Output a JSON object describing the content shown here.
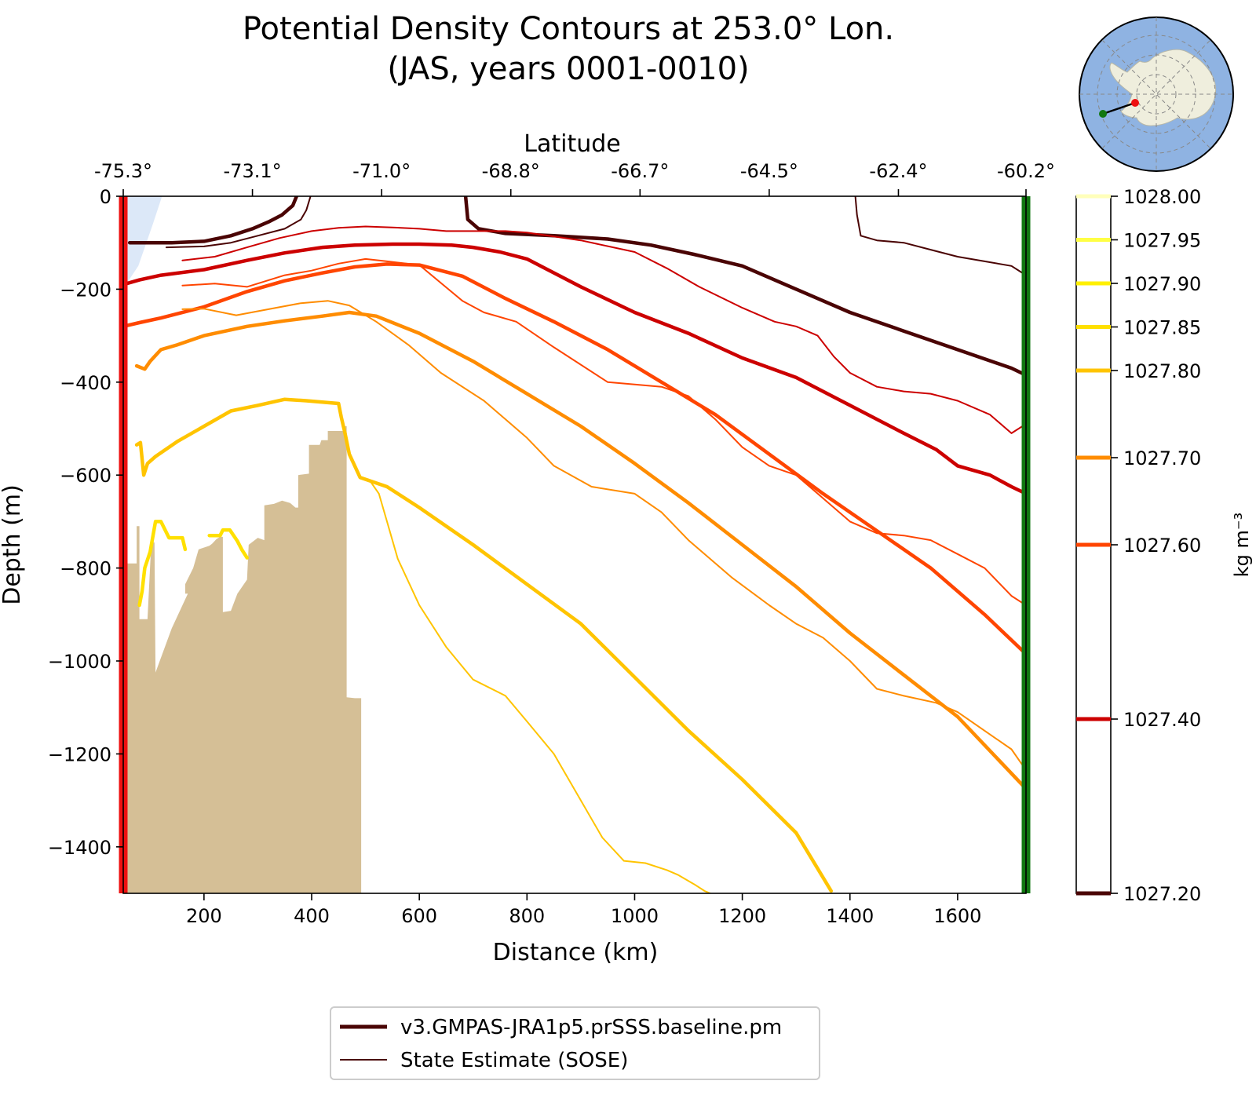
{
  "chart_data": {
    "type": "line",
    "title": "Potential Density Contours at 253.0° Lon.",
    "subtitle": "(JAS, years 0001-0010)",
    "xlabel": "Distance (km)",
    "ylabel": "Depth (m)",
    "top_xlabel": "Latitude",
    "xlim": [
      50,
      1727
    ],
    "ylim": [
      -1500,
      0
    ],
    "grid": false,
    "x_ticks": [
      200,
      400,
      600,
      800,
      1000,
      1200,
      1400,
      1600
    ],
    "x_tick_labels": [
      "200",
      "400",
      "600",
      "800",
      "1000",
      "1200",
      "1400",
      "1600"
    ],
    "y_ticks": [
      0,
      -200,
      -400,
      -600,
      -800,
      -1000,
      -1200,
      -1400
    ],
    "y_tick_labels": [
      "0",
      "−200",
      "−400",
      "−600",
      "−800",
      "−1000",
      "−1200",
      "−1400"
    ],
    "top_ticks": [
      50,
      290,
      530,
      770,
      1010,
      1250,
      1490,
      1727
    ],
    "top_tick_labels": [
      "-75.3°",
      "-73.1°",
      "-71.0°",
      "-68.8°",
      "-66.7°",
      "-64.5°",
      "-62.4°",
      "-60.2°"
    ],
    "legend": {
      "placement": "bottom-center",
      "entries": [
        {
          "label": "v3.GMPAS-JRA1p5.prSSS.baseline.pm",
          "style": "thick",
          "color": "#4a0404"
        },
        {
          "label": "State Estimate (SOSE)",
          "style": "thin",
          "color": "#4a0404"
        }
      ]
    },
    "colorbar": {
      "label": "kg m⁻³",
      "range": [
        1027.2,
        1028.0
      ],
      "levels": [
        {
          "value": 1028.0,
          "label": "1028.00",
          "color": "#ffffbb"
        },
        {
          "value": 1027.95,
          "label": "1027.95",
          "color": "#ffff44"
        },
        {
          "value": 1027.9,
          "label": "1027.90",
          "color": "#fff000"
        },
        {
          "value": 1027.85,
          "label": "1027.85",
          "color": "#ffe000"
        },
        {
          "value": 1027.8,
          "label": "1027.80",
          "color": "#ffc400"
        },
        {
          "value": 1027.7,
          "label": "1027.70",
          "color": "#ff8c00"
        },
        {
          "value": 1027.6,
          "label": "1027.60",
          "color": "#ff4500"
        },
        {
          "value": 1027.4,
          "label": "1027.40",
          "color": "#cc0000"
        },
        {
          "value": 1027.2,
          "label": "1027.20",
          "color": "#4a0404"
        }
      ]
    },
    "section_endpoints": [
      {
        "x": 50,
        "color": "#ee1111"
      },
      {
        "x": 1727,
        "color": "#117711"
      }
    ],
    "ice_shelf": {
      "color": "#dce8f8",
      "outline": [
        [
          50,
          0
        ],
        [
          122,
          0
        ],
        [
          105,
          -60
        ],
        [
          78,
          -150
        ],
        [
          55,
          -190
        ],
        [
          50,
          -190
        ]
      ]
    },
    "seafloor": {
      "color": "#d5bf96",
      "outline": [
        [
          52,
          -790
        ],
        [
          75,
          -790
        ],
        [
          75,
          -710
        ],
        [
          80,
          -710
        ],
        [
          80,
          -910
        ],
        [
          95,
          -910
        ],
        [
          102,
          -745
        ],
        [
          108,
          -745
        ],
        [
          110,
          -1025
        ],
        [
          140,
          -930
        ],
        [
          170,
          -855
        ],
        [
          165,
          -855
        ],
        [
          165,
          -835
        ],
        [
          180,
          -800
        ],
        [
          190,
          -760
        ],
        [
          210,
          -752
        ],
        [
          215,
          -748
        ],
        [
          223,
          -738
        ],
        [
          230,
          -733
        ],
        [
          235,
          -733
        ],
        [
          235,
          -895
        ],
        [
          250,
          -892
        ],
        [
          262,
          -855
        ],
        [
          280,
          -825
        ],
        [
          283,
          -750
        ],
        [
          300,
          -735
        ],
        [
          312,
          -740
        ],
        [
          312,
          -665
        ],
        [
          330,
          -662
        ],
        [
          345,
          -655
        ],
        [
          360,
          -660
        ],
        [
          370,
          -670
        ],
        [
          375,
          -670
        ],
        [
          375,
          -600
        ],
        [
          395,
          -597
        ],
        [
          395,
          -535
        ],
        [
          415,
          -535
        ],
        [
          418,
          -525
        ],
        [
          430,
          -525
        ],
        [
          430,
          -505
        ],
        [
          460,
          -505
        ],
        [
          460,
          -495
        ],
        [
          465,
          -495
        ],
        [
          465,
          -1078
        ],
        [
          480,
          -1080
        ],
        [
          492,
          -1080
        ],
        [
          492,
          -1500
        ],
        [
          52,
          -1500
        ]
      ]
    },
    "series": [
      {
        "model": "v3.GMPAS-JRA1p5.prSSS.baseline.pm",
        "density": 1027.2,
        "color": "#4a0404",
        "x": [
          62,
          75,
          95,
          140,
          200,
          250,
          290,
          320,
          345,
          365,
          372
        ],
        "y": [
          -100,
          -100,
          -100,
          -100,
          -97,
          -85,
          -70,
          -55,
          -40,
          -20,
          0
        ]
      },
      {
        "model": "v3.GMPAS-JRA1p5.prSSS.baseline.pm",
        "density": 1027.2,
        "color": "#4a0404",
        "x": [
          686,
          690,
          710,
          760,
          850,
          950,
          1030,
          1110,
          1200,
          1300,
          1400,
          1500,
          1600,
          1700,
          1727
        ],
        "y": [
          0,
          -50,
          -70,
          -80,
          -85,
          -92,
          -105,
          -125,
          -150,
          -200,
          -250,
          -290,
          -330,
          -370,
          -385
        ]
      },
      {
        "model": "v3.GMPAS-JRA1p5.prSSS.baseline.pm",
        "density": 1027.4,
        "color": "#cc0000",
        "x": [
          50,
          80,
          120,
          200,
          280,
          350,
          420,
          480,
          550,
          600,
          660,
          700,
          750,
          800,
          900,
          1000,
          1100,
          1200,
          1300,
          1400,
          1500,
          1560,
          1600,
          1660,
          1700,
          1727
        ],
        "y": [
          -190,
          -180,
          -170,
          -158,
          -138,
          -122,
          -110,
          -105,
          -103,
          -103,
          -105,
          -110,
          -120,
          -135,
          -195,
          -250,
          -295,
          -348,
          -390,
          -450,
          -510,
          -545,
          -580,
          -600,
          -625,
          -640
        ]
      },
      {
        "model": "v3.GMPAS-JRA1p5.prSSS.baseline.pm",
        "density": 1027.6,
        "color": "#ff4500",
        "x": [
          50,
          80,
          120,
          200,
          280,
          350,
          420,
          480,
          540,
          600,
          680,
          760,
          850,
          950,
          1050,
          1150,
          1250,
          1350,
          1450,
          1550,
          1650,
          1727
        ],
        "y": [
          -280,
          -272,
          -262,
          -238,
          -205,
          -182,
          -165,
          -152,
          -146,
          -148,
          -172,
          -220,
          -270,
          -330,
          -400,
          -470,
          -555,
          -640,
          -720,
          -800,
          -900,
          -985
        ]
      },
      {
        "model": "v3.GMPAS-JRA1p5.prSSS.baseline.pm",
        "density": 1027.7,
        "color": "#ff8c00",
        "x": [
          75,
          90,
          100,
          120,
          150,
          200,
          280,
          350,
          420,
          470,
          520,
          600,
          700,
          800,
          900,
          1000,
          1100,
          1200,
          1300,
          1400,
          1500,
          1600,
          1727
        ],
        "y": [
          -365,
          -372,
          -355,
          -330,
          -320,
          -300,
          -280,
          -268,
          -258,
          -250,
          -258,
          -295,
          -355,
          -425,
          -495,
          -575,
          -660,
          -750,
          -840,
          -940,
          -1030,
          -1120,
          -1275
        ]
      },
      {
        "model": "v3.GMPAS-JRA1p5.prSSS.baseline.pm",
        "density": 1027.8,
        "color": "#ffc400",
        "x": [
          75,
          82,
          88,
          95,
          110,
          150,
          200,
          250,
          300,
          350,
          390,
          420,
          450,
          455,
          462,
          470,
          490,
          540,
          600,
          700,
          800,
          900,
          1000,
          1100,
          1200,
          1300,
          1365
        ],
        "y": [
          -535,
          -530,
          -600,
          -575,
          -560,
          -528,
          -495,
          -462,
          -450,
          -437,
          -440,
          -443,
          -446,
          -475,
          -510,
          -555,
          -605,
          -625,
          -670,
          -750,
          -835,
          -920,
          -1035,
          -1150,
          -1255,
          -1370,
          -1495
        ]
      },
      {
        "model": "v3.GMPAS-JRA1p5.prSSS.baseline.pm",
        "density": 1027.85,
        "color": "#ffe000",
        "x": [
          80,
          85,
          90,
          100,
          110,
          120,
          135,
          160,
          165
        ],
        "y": [
          -880,
          -850,
          -800,
          -765,
          -700,
          -700,
          -735,
          -735,
          -760
        ]
      },
      {
        "model": "v3.GMPAS-JRA1p5.prSSS.baseline.pm",
        "density": 1027.85,
        "color": "#ffe000",
        "x": [
          210,
          230,
          235,
          248,
          262,
          270,
          280
        ],
        "y": [
          -730,
          -730,
          -718,
          -718,
          -742,
          -760,
          -778
        ]
      },
      {
        "model": "State Estimate (SOSE)",
        "density": 1027.2,
        "color": "#4a0404",
        "x": [
          130,
          200,
          250,
          300,
          350,
          380,
          390,
          398
        ],
        "y": [
          -110,
          -108,
          -100,
          -85,
          -70,
          -50,
          -30,
          0
        ]
      },
      {
        "model": "State Estimate (SOSE)",
        "density": 1027.2,
        "color": "#4a0404",
        "x": [
          1410,
          1413,
          1420,
          1450,
          1500,
          1550,
          1600,
          1650,
          1700,
          1727
        ],
        "y": [
          0,
          -40,
          -85,
          -95,
          -100,
          -115,
          -130,
          -140,
          -150,
          -170
        ]
      },
      {
        "model": "State Estimate (SOSE)",
        "density": 1027.4,
        "color": "#cc0000",
        "x": [
          160,
          220,
          280,
          340,
          400,
          450,
          500,
          550,
          600,
          650,
          700,
          760,
          800,
          900,
          1000,
          1060,
          1120,
          1200,
          1260,
          1300,
          1340,
          1370,
          1400,
          1450,
          1500,
          1550,
          1600,
          1660,
          1700,
          1727
        ],
        "y": [
          -138,
          -130,
          -110,
          -90,
          -75,
          -68,
          -65,
          -67,
          -70,
          -75,
          -75,
          -75,
          -78,
          -95,
          -120,
          -155,
          -195,
          -240,
          -270,
          -280,
          -300,
          -345,
          -380,
          -410,
          -420,
          -425,
          -440,
          -470,
          -510,
          -490
        ]
      },
      {
        "model": "State Estimate (SOSE)",
        "density": 1027.6,
        "color": "#ff4500",
        "x": [
          160,
          220,
          280,
          350,
          400,
          450,
          500,
          540,
          600,
          680,
          720,
          780,
          850,
          950,
          1050,
          1100,
          1150,
          1200,
          1250,
          1300,
          1350,
          1400,
          1450,
          1500,
          1550,
          1600,
          1650,
          1700,
          1727
        ],
        "y": [
          -192,
          -188,
          -195,
          -170,
          -160,
          -145,
          -135,
          -140,
          -148,
          -225,
          -250,
          -270,
          -325,
          -400,
          -410,
          -430,
          -480,
          -540,
          -580,
          -600,
          -650,
          -700,
          -725,
          -730,
          -740,
          -770,
          -800,
          -860,
          -880
        ]
      },
      {
        "model": "State Estimate (SOSE)",
        "density": 1027.7,
        "color": "#ff8c00",
        "x": [
          160,
          200,
          260,
          320,
          380,
          430,
          470,
          520,
          580,
          640,
          720,
          800,
          850,
          920,
          1000,
          1050,
          1100,
          1180,
          1250,
          1300,
          1350,
          1400,
          1450,
          1500,
          1560,
          1600,
          1650,
          1700,
          1727
        ],
        "y": [
          -243,
          -242,
          -256,
          -243,
          -230,
          -225,
          -235,
          -270,
          -320,
          -380,
          -440,
          -520,
          -580,
          -625,
          -640,
          -680,
          -740,
          -820,
          -880,
          -920,
          -950,
          -1000,
          -1060,
          -1075,
          -1090,
          -1110,
          -1150,
          -1190,
          -1235
        ]
      },
      {
        "model": "State Estimate (SOSE)",
        "density": 1027.8,
        "color": "#ffc400",
        "x": [
          510,
          525,
          540,
          560,
          600,
          650,
          700,
          760,
          800,
          850,
          900,
          940,
          980,
          1020,
          1060,
          1080,
          1110,
          1130,
          1160
        ],
        "y": [
          -615,
          -640,
          -700,
          -780,
          -880,
          -970,
          -1040,
          -1075,
          -1130,
          -1200,
          -1300,
          -1380,
          -1430,
          -1435,
          -1450,
          -1460,
          -1480,
          -1495,
          -1510
        ]
      }
    ]
  },
  "inset_map": {
    "ocean_color": "#8fb3e2",
    "land_color": "#efeedd",
    "start_color": "#ee1111",
    "end_color": "#117711"
  }
}
